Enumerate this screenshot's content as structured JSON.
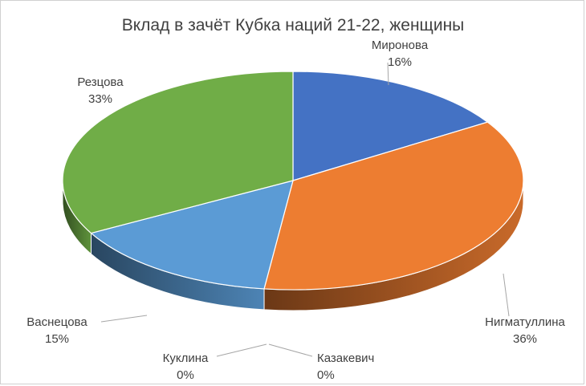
{
  "chart_data": {
    "type": "pie",
    "style": "3d",
    "title": "Вклад в зачёт Кубка наций 21-22, женщины",
    "categories": [
      "Миронова",
      "Нигматуллина",
      "Казакевич",
      "Куклина",
      "Васнецова",
      "Резцова"
    ],
    "values": [
      16,
      36,
      0,
      0,
      15,
      33
    ],
    "labels": [
      "16%",
      "36%",
      "0%",
      "0%",
      "15%",
      "33%"
    ],
    "colors": [
      "#4472C4",
      "#ED7D31",
      "#A5A5A5",
      "#FFC000",
      "#5B9BD5",
      "#70AD47"
    ],
    "legend": "none"
  }
}
